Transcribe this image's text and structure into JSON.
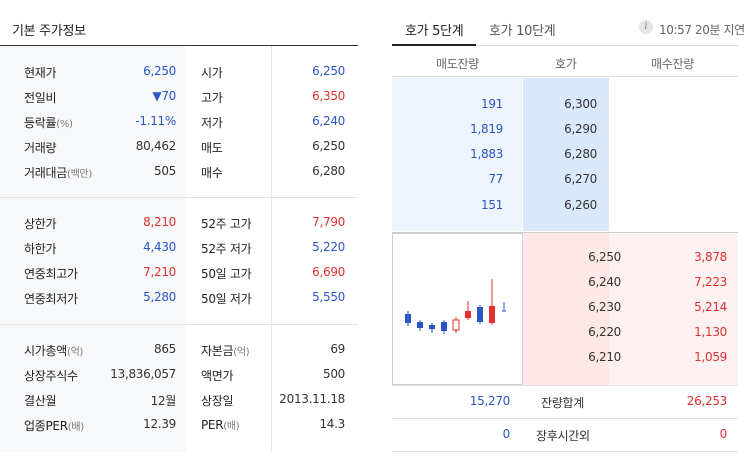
{
  "basic": {
    "title": "기본 주가정보",
    "sections": [
      {
        "rows": [
          {
            "l1": "현재가",
            "l1_unit": "",
            "v1": "6,250",
            "v1_color": "blue",
            "l2": "시가",
            "l2_unit": "",
            "v2": "6,250",
            "v2_color": "blue"
          },
          {
            "l1": "전일비",
            "l1_unit": "",
            "v1": "▼70",
            "v1_color": "blue",
            "l2": "고가",
            "l2_unit": "",
            "v2": "6,350",
            "v2_color": "red"
          },
          {
            "l1": "등락률",
            "l1_unit": "(%)",
            "v1": "-1.11%",
            "v1_color": "blue",
            "l2": "저가",
            "l2_unit": "",
            "v2": "6,240",
            "v2_color": "blue"
          },
          {
            "l1": "거래량",
            "l1_unit": "",
            "v1": "80,462",
            "v1_color": "dark",
            "l2": "매도",
            "l2_unit": "",
            "v2": "6,250",
            "v2_color": "dark"
          },
          {
            "l1": "거래대금",
            "l1_unit": "(백만)",
            "v1": "505",
            "v1_color": "dark",
            "l2": "매수",
            "l2_unit": "",
            "v2": "6,280",
            "v2_color": "dark"
          }
        ]
      },
      {
        "rows": [
          {
            "l1": "상한가",
            "l1_unit": "",
            "v1": "8,210",
            "v1_color": "red",
            "l2": "52주 고가",
            "l2_unit": "",
            "v2": "7,790",
            "v2_color": "red"
          },
          {
            "l1": "하한가",
            "l1_unit": "",
            "v1": "4,430",
            "v1_color": "blue",
            "l2": "52주 저가",
            "l2_unit": "",
            "v2": "5,220",
            "v2_color": "blue"
          },
          {
            "l1": "연중최고가",
            "l1_unit": "",
            "v1": "7,210",
            "v1_color": "red",
            "l2": "50일 고가",
            "l2_unit": "",
            "v2": "6,690",
            "v2_color": "red"
          },
          {
            "l1": "연중최저가",
            "l1_unit": "",
            "v1": "5,280",
            "v1_color": "blue",
            "l2": "50일 저가",
            "l2_unit": "",
            "v2": "5,550",
            "v2_color": "blue"
          }
        ]
      },
      {
        "rows": [
          {
            "l1": "시가총액",
            "l1_unit": "(억)",
            "v1": "865",
            "v1_color": "dark",
            "l2": "자본금",
            "l2_unit": "(억)",
            "v2": "69",
            "v2_color": "dark"
          },
          {
            "l1": "상장주식수",
            "l1_unit": "",
            "v1": "13,836,057",
            "v1_color": "dark",
            "l2": "액면가",
            "l2_unit": "",
            "v2": "500",
            "v2_color": "dark"
          },
          {
            "l1": "결산월",
            "l1_unit": "",
            "v1": "12월",
            "v1_color": "dark",
            "l2": "상장일",
            "l2_unit": "",
            "v2": "2013.11.18",
            "v2_color": "dark"
          },
          {
            "l1": "업종PER",
            "l1_unit": "(배)",
            "v1": "12.39",
            "v1_color": "dark",
            "l2": "PER",
            "l2_unit": "(배)",
            "v2": "14.3",
            "v2_color": "dark"
          }
        ]
      }
    ]
  },
  "orderbook": {
    "tabs": [
      "호가 5단계",
      "호가 10단계"
    ],
    "timestamp": "10:57 20분 지연",
    "info_icon": "info-icon",
    "columns": [
      "매도잔량",
      "호가",
      "매수잔량"
    ],
    "asks": [
      {
        "qty": "191",
        "price": "6,300"
      },
      {
        "qty": "1,819",
        "price": "6,290"
      },
      {
        "qty": "1,883",
        "price": "6,280"
      },
      {
        "qty": "77",
        "price": "6,270"
      },
      {
        "qty": "151",
        "price": "6,260"
      }
    ],
    "bids": [
      {
        "price": "6,250",
        "qty": "3,878"
      },
      {
        "price": "6,240",
        "qty": "7,223"
      },
      {
        "price": "6,230",
        "qty": "5,214"
      },
      {
        "price": "6,220",
        "qty": "1,130"
      },
      {
        "price": "6,210",
        "qty": "1,059"
      }
    ],
    "total": {
      "ask": "15,270",
      "label": "잔량합계",
      "bid": "26,253"
    },
    "after_hours": {
      "ask": "0",
      "label": "장후시간외",
      "bid": "0"
    }
  },
  "colors": {
    "blue": "#2a56c6",
    "red": "#e0312f",
    "ask_bg": "#edf4fd",
    "bid_bg": "#fdf1f1"
  }
}
